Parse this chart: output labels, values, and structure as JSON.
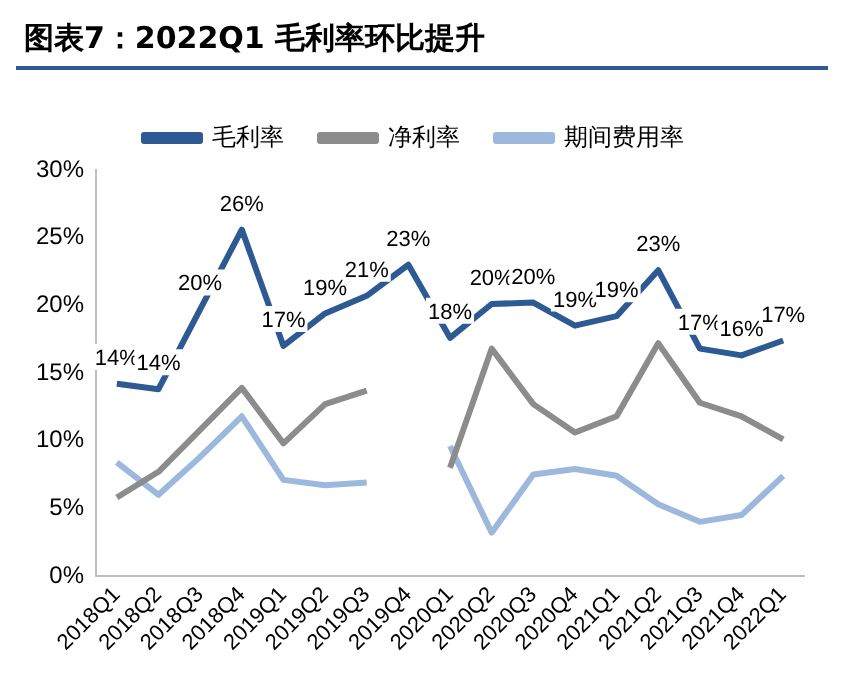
{
  "chart_data": {
    "type": "line",
    "title": "图表7：2022Q1 毛利率环比提升",
    "categories": [
      "2018Q1",
      "2018Q2",
      "2018Q3",
      "2018Q4",
      "2019Q1",
      "2019Q2",
      "2019Q3",
      "2019Q4",
      "2020Q1",
      "2020Q2",
      "2020Q3",
      "2020Q4",
      "2021Q1",
      "2021Q2",
      "2021Q3",
      "2021Q4",
      "2022Q1"
    ],
    "series": [
      {
        "name": "毛利率",
        "color": "#2e5a94",
        "values": [
          14.2,
          13.8,
          19.7,
          25.6,
          17.0,
          19.4,
          20.7,
          23.0,
          17.6,
          20.1,
          20.2,
          18.5,
          19.2,
          22.6,
          16.8,
          16.3,
          17.4
        ],
        "value_labels": [
          "14%",
          "14%",
          "20%",
          "26%",
          "17%",
          "19%",
          "21%",
          "23%",
          "18%",
          "20%",
          "20%",
          "19%",
          "19%",
          "23%",
          "17%",
          "16%",
          "17%"
        ]
      },
      {
        "name": "净利率",
        "color": "#8c8c8c",
        "values": [
          5.8,
          7.7,
          10.8,
          13.9,
          9.8,
          12.7,
          13.7,
          null,
          8.0,
          16.8,
          12.7,
          10.6,
          11.8,
          17.2,
          12.8,
          11.8,
          10.1
        ]
      },
      {
        "name": "期间费用率",
        "color": "#9db8dd",
        "values": [
          8.4,
          6.0,
          8.8,
          11.8,
          7.1,
          6.7,
          6.9,
          null,
          9.6,
          3.2,
          7.5,
          7.9,
          7.4,
          5.3,
          4.0,
          4.5,
          7.4
        ]
      }
    ],
    "ylim": [
      0,
      30
    ],
    "yticks": [
      {
        "value": 0,
        "label": "0%"
      },
      {
        "value": 5,
        "label": "5%"
      },
      {
        "value": 10,
        "label": "10%"
      },
      {
        "value": 15,
        "label": "15%"
      },
      {
        "value": 20,
        "label": "20%"
      },
      {
        "value": 25,
        "label": "25%"
      },
      {
        "value": 30,
        "label": "30%"
      }
    ],
    "grid": false,
    "legend": "top",
    "marker": "none",
    "line_style": "solid"
  }
}
